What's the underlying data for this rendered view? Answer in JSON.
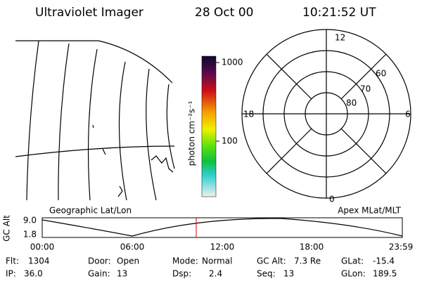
{
  "header": {
    "title": "Ultraviolet Imager",
    "date": "28 Oct 00",
    "time": "10:21:52 UT"
  },
  "colorbar": {
    "ticks": [
      "1000",
      "100"
    ],
    "label": "photon cm⁻²s⁻¹"
  },
  "polar": {
    "hour_labels": [
      "12",
      "18",
      "6",
      "0"
    ],
    "lat_labels": [
      "60",
      "70",
      "80"
    ]
  },
  "timeline": {
    "left_title": "Geographic Lat/Lon",
    "right_title": "Apex MLat/MLT",
    "y_label": "GC Alt",
    "y_ticks": [
      "9.0",
      "1.8"
    ],
    "x_ticks": [
      "00:00",
      "06:00",
      "12:00",
      "18:00",
      "23:59"
    ]
  },
  "footer": {
    "fields": [
      {
        "label": "Flt:",
        "value": "1304"
      },
      {
        "label": "IP:",
        "value": "36.0"
      },
      {
        "label": "Door:",
        "value": "Open"
      },
      {
        "label": "Gain:",
        "value": "13"
      },
      {
        "label": "Mode:",
        "value": "Normal"
      },
      {
        "label": "Dsp:",
        "value": "2.4"
      },
      {
        "label": "GC Alt:",
        "value": "7.3 Re"
      },
      {
        "label": "Seq:",
        "value": "13"
      },
      {
        "label": "GLat:",
        "value": "-15.4"
      },
      {
        "label": "GLon:",
        "value": "189.5"
      }
    ]
  }
}
